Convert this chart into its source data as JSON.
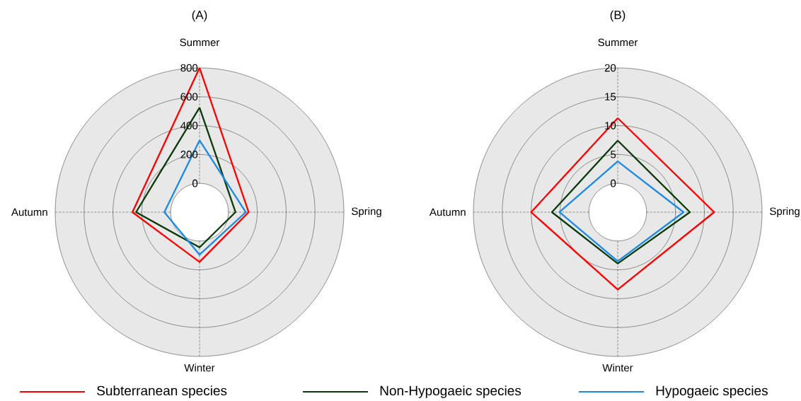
{
  "chart_data": [
    {
      "type": "radar",
      "title": "(A)",
      "categories": [
        "Summer",
        "Spring",
        "Winter",
        "Autumn"
      ],
      "ylim": [
        -200,
        800
      ],
      "yticks": [
        0,
        200,
        400,
        600,
        800
      ],
      "grid": true,
      "legend": "bottom",
      "series": [
        {
          "name": "Subterranean species",
          "color": "#ff0000",
          "values": [
            800,
            140,
            145,
            265
          ]
        },
        {
          "name": "Non-Hypogaeic species",
          "color": "#0a3a0a",
          "values": [
            525,
            49,
            44,
            240
          ]
        },
        {
          "name": "Hypogaeic species",
          "color": "#1a8ae6",
          "values": [
            298,
            120,
            95,
            44
          ]
        }
      ]
    },
    {
      "type": "radar",
      "title": "(B)",
      "categories": [
        "Summer",
        "Spring",
        "Winter",
        "Autumn"
      ],
      "ylim": [
        -5,
        20
      ],
      "yticks": [
        0,
        5,
        10,
        15,
        20
      ],
      "grid": true,
      "series": [
        {
          "color": "#ff0000",
          "values": [
            11.3,
            11.7,
            8.4,
            10.0
          ]
        },
        {
          "color": "#0a3a0a",
          "values": [
            7.4,
            7.5,
            3.9,
            6.4
          ]
        },
        {
          "color": "#1a8ae6",
          "values": [
            3.8,
            6.4,
            3.5,
            5.1
          ]
        }
      ]
    }
  ]
}
